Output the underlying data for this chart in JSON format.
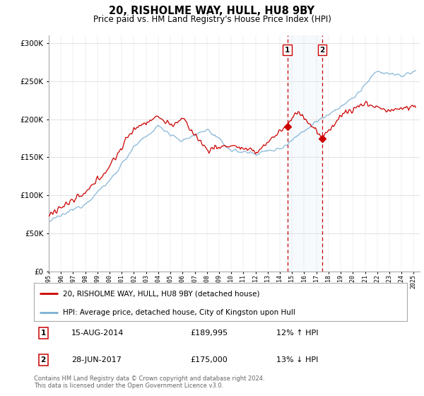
{
  "title": "20, RISHOLME WAY, HULL, HU8 9BY",
  "subtitle": "Price paid vs. HM Land Registry's House Price Index (HPI)",
  "hpi_label": "HPI: Average price, detached house, City of Kingston upon Hull",
  "property_label": "20, RISHOLME WAY, HULL, HU8 9BY (detached house)",
  "sale1_date": "15-AUG-2014",
  "sale1_price": "£189,995",
  "sale1_hpi": "12% ↑ HPI",
  "sale2_date": "28-JUN-2017",
  "sale2_price": "£175,000",
  "sale2_hpi": "13% ↓ HPI",
  "footer": "Contains HM Land Registry data © Crown copyright and database right 2024.\nThis data is licensed under the Open Government Licence v3.0.",
  "property_color": "#cc0000",
  "hpi_color": "#7aafd4",
  "sale1_vline_x": 2014.62,
  "sale2_vline_x": 2017.49,
  "sale1_price_val": 189995,
  "sale2_price_val": 175000,
  "ylim": [
    0,
    310000
  ],
  "xlim_min": 1995,
  "xlim_max": 2025.5
}
